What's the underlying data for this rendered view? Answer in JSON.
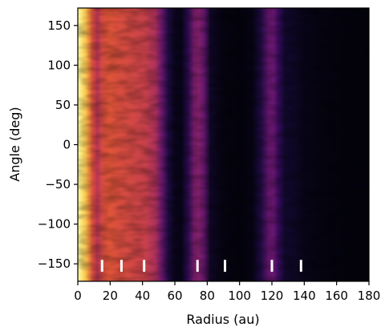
{
  "chart_data": {
    "type": "heatmap",
    "title": "",
    "xlabel": "Radius (au)",
    "ylabel": "Angle (deg)",
    "xlim": [
      0,
      180
    ],
    "ylim": [
      -172,
      172
    ],
    "x_ticks": [
      "0",
      "20",
      "40",
      "60",
      "80",
      "100",
      "120",
      "140",
      "160",
      "180"
    ],
    "y_ticks": [
      "−150",
      "−100",
      "−50",
      "0",
      "50",
      "100",
      "150"
    ],
    "x_tick_values": [
      0,
      20,
      40,
      60,
      80,
      100,
      120,
      140,
      160,
      180
    ],
    "y_tick_values": [
      -150,
      -100,
      -50,
      0,
      50,
      100,
      150
    ],
    "colormap": "inferno",
    "grid": false,
    "intensity_profile": [
      {
        "r": 0,
        "v": 1.0
      },
      {
        "r": 5,
        "v": 0.95
      },
      {
        "r": 9,
        "v": 0.75
      },
      {
        "r": 12,
        "v": 0.62
      },
      {
        "r": 15,
        "v": 0.72
      },
      {
        "r": 20,
        "v": 0.76
      },
      {
        "r": 25,
        "v": 0.73
      },
      {
        "r": 30,
        "v": 0.72
      },
      {
        "r": 35,
        "v": 0.7
      },
      {
        "r": 42,
        "v": 0.67
      },
      {
        "r": 48,
        "v": 0.58
      },
      {
        "r": 52,
        "v": 0.38
      },
      {
        "r": 56,
        "v": 0.15
      },
      {
        "r": 60,
        "v": 0.06
      },
      {
        "r": 64,
        "v": 0.05
      },
      {
        "r": 68,
        "v": 0.18
      },
      {
        "r": 72,
        "v": 0.42
      },
      {
        "r": 75,
        "v": 0.45
      },
      {
        "r": 78,
        "v": 0.36
      },
      {
        "r": 82,
        "v": 0.08
      },
      {
        "r": 90,
        "v": 0.03
      },
      {
        "r": 100,
        "v": 0.02
      },
      {
        "r": 108,
        "v": 0.04
      },
      {
        "r": 113,
        "v": 0.15
      },
      {
        "r": 118,
        "v": 0.36
      },
      {
        "r": 121,
        "v": 0.37
      },
      {
        "r": 124,
        "v": 0.22
      },
      {
        "r": 128,
        "v": 0.1
      },
      {
        "r": 134,
        "v": 0.08
      },
      {
        "r": 140,
        "v": 0.05
      },
      {
        "r": 150,
        "v": 0.03
      },
      {
        "r": 165,
        "v": 0.02
      },
      {
        "r": 180,
        "v": 0.02
      }
    ],
    "markers": {
      "radii": [
        15,
        27,
        41,
        74,
        91,
        120,
        138
      ],
      "angle_range": [
        -160,
        -145
      ],
      "color": "#ffffff"
    }
  }
}
